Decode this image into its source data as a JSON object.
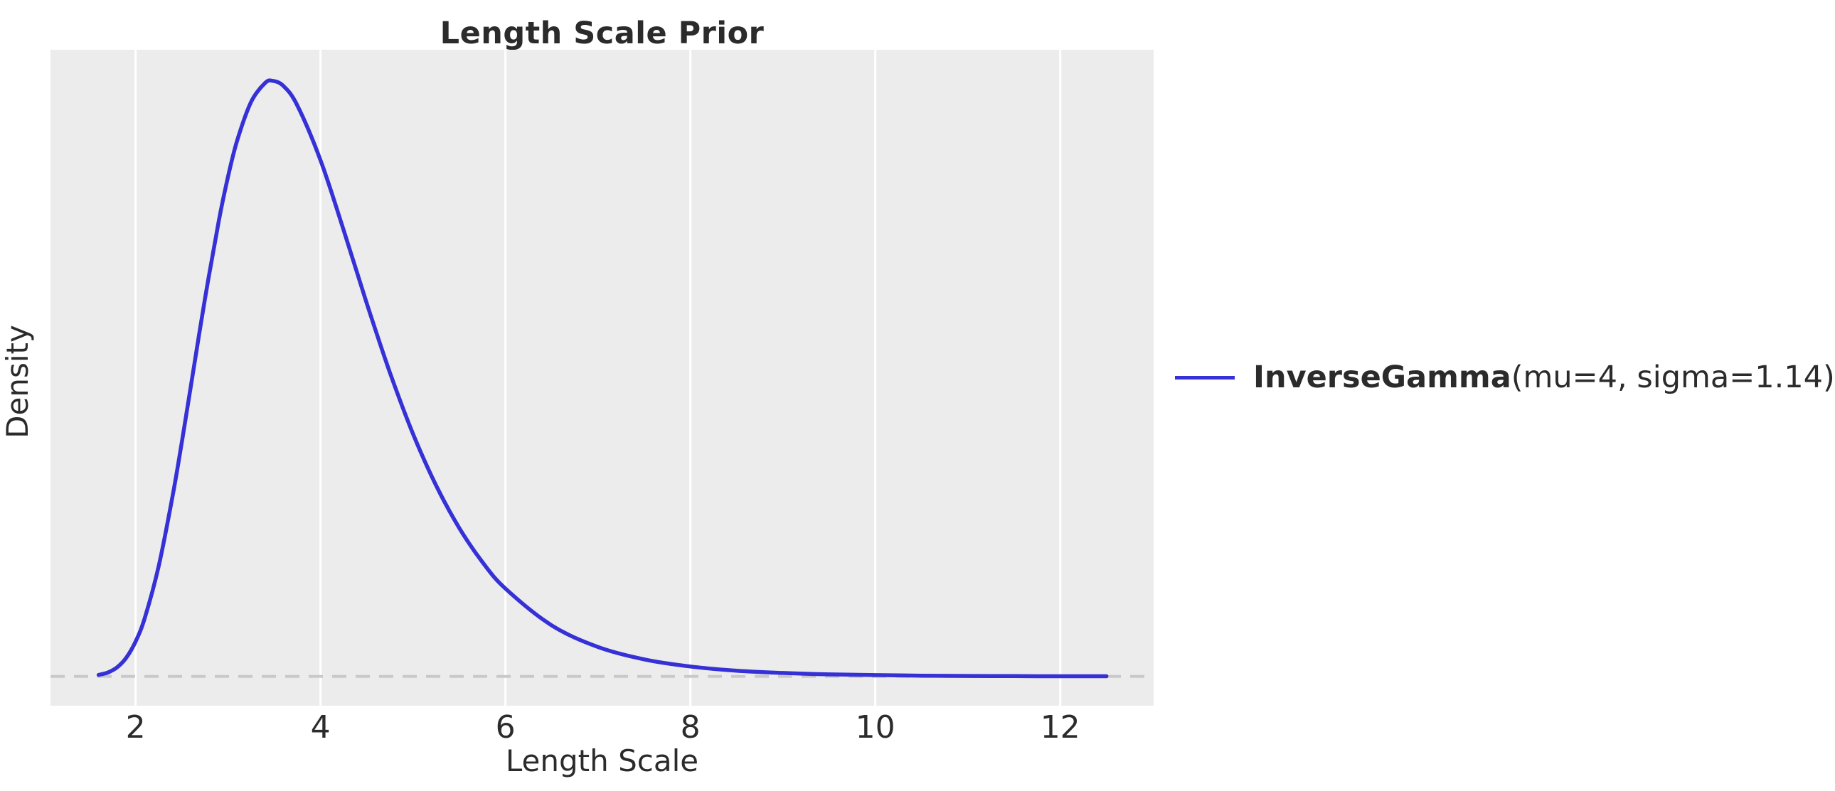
{
  "title": "Length Scale Prior",
  "x_axis_label": "Length Scale",
  "y_axis_label": "Density",
  "legend": {
    "name_bold": "InverseGamma",
    "params": "(mu=4, sigma=1.14)"
  },
  "colors": {
    "line": "#3531d6",
    "plot_background": "#ececec",
    "gridline": "#ffffff",
    "zero_baseline": "#c9c9c9",
    "text": "#2b2b2b"
  },
  "chart_data": {
    "type": "line",
    "title": "Length Scale Prior",
    "xlabel": "Length Scale",
    "ylabel": "Density",
    "x_ticks": [
      2,
      4,
      6,
      8,
      10,
      12
    ],
    "y_ticks": [],
    "xlim": [
      1.08,
      13.01
    ],
    "ylim": [
      -0.0205,
      0.438
    ],
    "grid": "vertical gridlines only, white on gray background",
    "legend_position": "center right, outside axes",
    "zero_baseline": {
      "y": 0,
      "style": "dashed"
    },
    "series": [
      {
        "name": "InverseGamma(mu=4, sigma=1.14)",
        "style": "solid",
        "x": [
          1.6,
          1.7,
          1.8,
          1.9,
          2.0,
          2.1,
          2.25,
          2.4,
          2.5,
          2.6,
          2.75,
          2.9,
          3.0,
          3.1,
          3.25,
          3.4,
          3.48,
          3.6,
          3.75,
          4.0,
          4.25,
          4.5,
          4.75,
          5.0,
          5.25,
          5.5,
          5.75,
          6.0,
          6.5,
          7.0,
          7.5,
          8.0,
          8.5,
          9.0,
          9.5,
          10.0,
          10.5,
          11.0,
          11.5,
          12.0,
          12.5
        ],
        "y": [
          0.001,
          0.0027,
          0.0063,
          0.0131,
          0.0243,
          0.0409,
          0.077,
          0.1259,
          0.1636,
          0.2037,
          0.2637,
          0.3183,
          0.3493,
          0.3748,
          0.4016,
          0.4147,
          0.4163,
          0.4126,
          0.399,
          0.3608,
          0.312,
          0.2608,
          0.2125,
          0.1696,
          0.1335,
          0.1038,
          0.08,
          0.0614,
          0.0357,
          0.0206,
          0.0119,
          0.0069,
          0.004,
          0.0024,
          0.0014,
          0.0009,
          0.0005,
          0.0003,
          0.0002,
          0.0001,
          0.0001
        ]
      }
    ]
  }
}
